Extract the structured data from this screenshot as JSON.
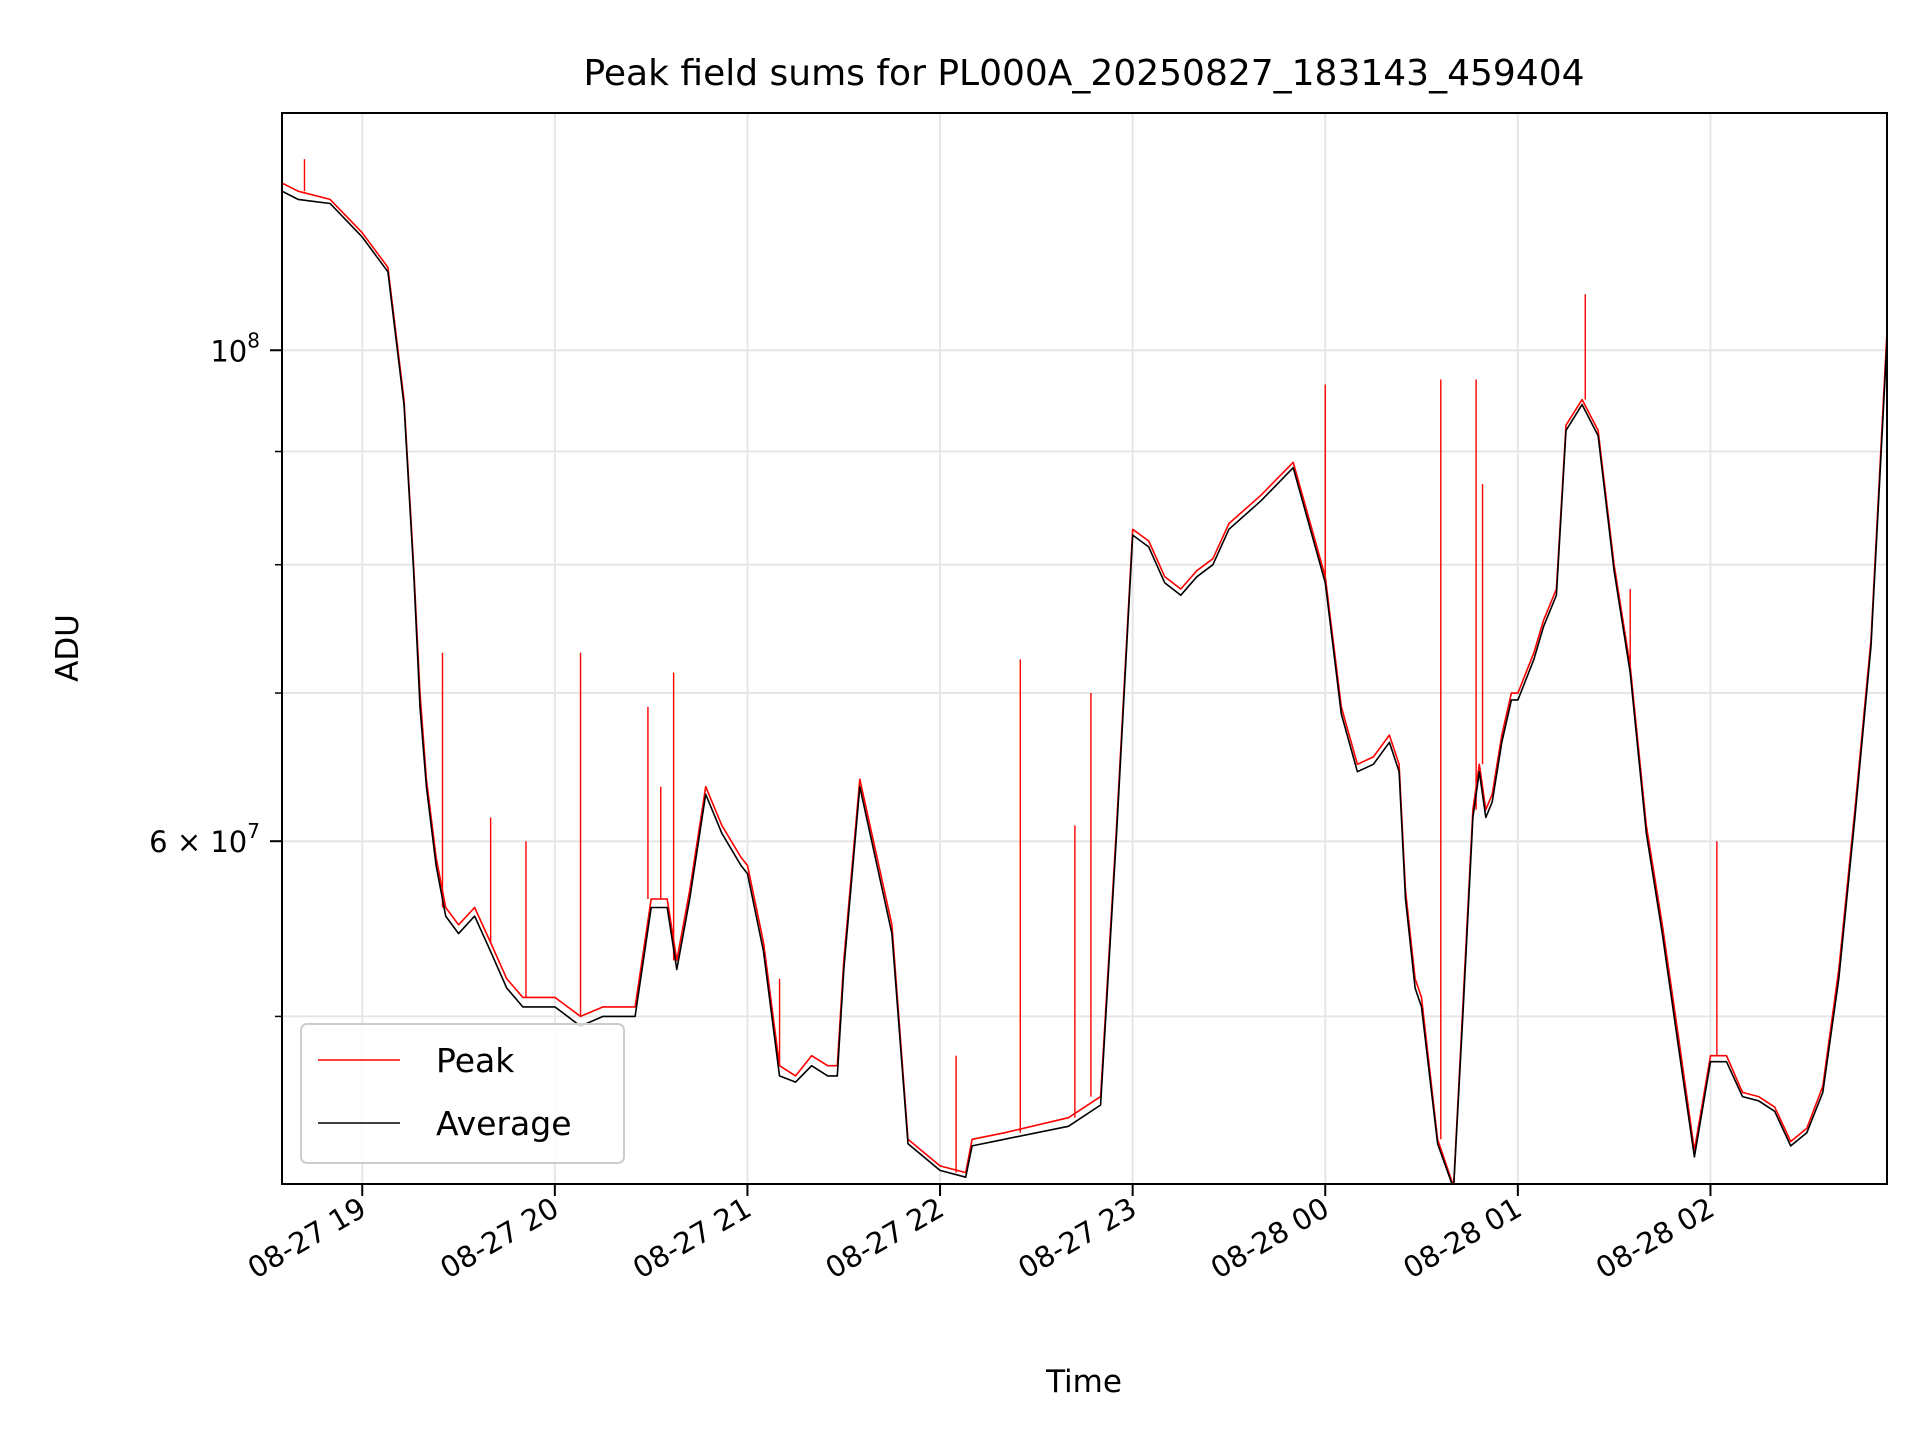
{
  "chart_data": {
    "type": "line",
    "title": "Peak field sums for PL000A_20250827_183143_459404",
    "xlabel": "Time",
    "ylabel": "ADU",
    "yscale": "log",
    "grid": true,
    "legend_position": "lower-left",
    "xlim": [
      "2025-08-27 18:35",
      "2025-08-28 02:55"
    ],
    "ylim": [
      42000000,
      128000000
    ],
    "x_ticks": [
      "08-27 19",
      "08-27 20",
      "08-27 21",
      "08-27 22",
      "08-27 23",
      "08-28 00",
      "08-28 01",
      "08-28 02"
    ],
    "x_tick_times": [
      "2025-08-27 19:00",
      "2025-08-27 20:00",
      "2025-08-27 21:00",
      "2025-08-27 22:00",
      "2025-08-27 23:00",
      "2025-08-28 00:00",
      "2025-08-28 01:00",
      "2025-08-28 02:00"
    ],
    "y_major_ticks": [
      {
        "value": 100000000,
        "base": "10",
        "exp": "8"
      },
      {
        "value": 60000000,
        "base": "6 × 10",
        "exp": "7"
      }
    ],
    "y_minor_ticks": [
      50000000,
      70000000,
      80000000,
      90000000
    ],
    "series": [
      {
        "name": "Peak",
        "color": "#ff0000",
        "x": [
          "2025-08-27 18:35",
          "2025-08-27 18:40",
          "2025-08-27 18:50",
          "2025-08-27 19:00",
          "2025-08-27 19:08",
          "2025-08-27 19:13",
          "2025-08-27 19:16",
          "2025-08-27 19:18",
          "2025-08-27 19:20",
          "2025-08-27 19:23",
          "2025-08-27 19:26",
          "2025-08-27 19:30",
          "2025-08-27 19:35",
          "2025-08-27 19:40",
          "2025-08-27 19:45",
          "2025-08-27 19:50",
          "2025-08-27 19:55",
          "2025-08-27 20:00",
          "2025-08-27 20:08",
          "2025-08-27 20:15",
          "2025-08-27 20:25",
          "2025-08-27 20:30",
          "2025-08-27 20:35",
          "2025-08-27 20:38",
          "2025-08-27 20:42",
          "2025-08-27 20:47",
          "2025-08-27 20:52",
          "2025-08-27 20:58",
          "2025-08-27 21:00",
          "2025-08-27 21:05",
          "2025-08-27 21:10",
          "2025-08-27 21:15",
          "2025-08-27 21:20",
          "2025-08-27 21:25",
          "2025-08-27 21:28",
          "2025-08-27 21:30",
          "2025-08-27 21:35",
          "2025-08-27 21:45",
          "2025-08-27 21:50",
          "2025-08-27 22:00",
          "2025-08-27 22:08",
          "2025-08-27 22:10",
          "2025-08-27 22:20",
          "2025-08-27 22:40",
          "2025-08-27 22:50",
          "2025-08-27 22:55",
          "2025-08-27 23:00",
          "2025-08-27 23:05",
          "2025-08-27 23:10",
          "2025-08-27 23:15",
          "2025-08-27 23:20",
          "2025-08-27 23:25",
          "2025-08-27 23:30",
          "2025-08-27 23:40",
          "2025-08-27 23:50",
          "2025-08-28 00:00",
          "2025-08-28 00:05",
          "2025-08-28 00:10",
          "2025-08-28 00:15",
          "2025-08-28 00:20",
          "2025-08-28 00:23",
          "2025-08-28 00:25",
          "2025-08-28 00:28",
          "2025-08-28 00:30",
          "2025-08-28 00:35",
          "2025-08-28 00:40",
          "2025-08-28 00:43",
          "2025-08-28 00:46",
          "2025-08-28 00:48",
          "2025-08-28 00:50",
          "2025-08-28 00:52",
          "2025-08-28 00:55",
          "2025-08-28 00:58",
          "2025-08-28 01:00",
          "2025-08-28 01:05",
          "2025-08-28 01:08",
          "2025-08-28 01:12",
          "2025-08-28 01:15",
          "2025-08-28 01:20",
          "2025-08-28 01:25",
          "2025-08-28 01:30",
          "2025-08-28 01:35",
          "2025-08-28 01:40",
          "2025-08-28 01:45",
          "2025-08-28 01:50",
          "2025-08-28 01:55",
          "2025-08-28 02:00",
          "2025-08-28 02:05",
          "2025-08-28 02:10",
          "2025-08-28 02:15",
          "2025-08-28 02:20",
          "2025-08-28 02:25",
          "2025-08-28 02:30",
          "2025-08-28 02:35",
          "2025-08-28 02:40",
          "2025-08-28 02:45",
          "2025-08-28 02:50",
          "2025-08-28 02:55"
        ],
        "y": [
          119000000,
          118000000,
          117000000,
          113000000,
          109000000,
          95000000,
          80000000,
          70000000,
          64000000,
          59000000,
          56000000,
          55000000,
          56000000,
          54000000,
          52000000,
          51000000,
          51000000,
          51000000,
          50000000,
          50500000,
          50500000,
          56500000,
          56500000,
          53000000,
          57000000,
          63500000,
          61000000,
          59000000,
          58500000,
          54000000,
          47500000,
          47000000,
          48000000,
          47500000,
          47500000,
          53000000,
          64000000,
          55000000,
          44000000,
          42800000,
          42500000,
          44000000,
          44300000,
          45000000,
          46000000,
          61000000,
          83000000,
          82000000,
          79000000,
          78000000,
          79500000,
          80500000,
          83500000,
          86000000,
          89000000,
          79000000,
          69000000,
          65000000,
          65500000,
          67000000,
          65000000,
          57000000,
          52000000,
          51000000,
          44000000,
          41900000,
          51000000,
          62000000,
          65000000,
          62000000,
          63000000,
          67000000,
          70000000,
          70000000,
          73000000,
          75500000,
          78000000,
          92500000,
          95000000,
          92000000,
          80000000,
          72000000,
          61000000,
          55000000,
          49000000,
          43500000,
          48000000,
          48000000,
          46200000,
          46000000,
          45500000,
          43900000,
          44500000,
          46500000,
          52500000,
          62000000,
          74000000,
          102000000
        ],
        "spikes": [
          {
            "x": "2025-08-27 18:42",
            "y": 122000000
          },
          {
            "x": "2025-08-27 19:25",
            "y": 73000000
          },
          {
            "x": "2025-08-27 19:40",
            "y": 61500000
          },
          {
            "x": "2025-08-27 19:51",
            "y": 60000000
          },
          {
            "x": "2025-08-27 20:08",
            "y": 73000000
          },
          {
            "x": "2025-08-27 20:29",
            "y": 69000000
          },
          {
            "x": "2025-08-27 20:33",
            "y": 63500000
          },
          {
            "x": "2025-08-27 20:37",
            "y": 71500000
          },
          {
            "x": "2025-08-27 21:10",
            "y": 52000000
          },
          {
            "x": "2025-08-27 22:05",
            "y": 48000000
          },
          {
            "x": "2025-08-27 22:25",
            "y": 72500000
          },
          {
            "x": "2025-08-27 22:42",
            "y": 61000000
          },
          {
            "x": "2025-08-27 22:47",
            "y": 70000000
          },
          {
            "x": "2025-08-28 00:00",
            "y": 96500000
          },
          {
            "x": "2025-08-28 00:36",
            "y": 97000000
          },
          {
            "x": "2025-08-28 00:47",
            "y": 97000000
          },
          {
            "x": "2025-08-28 00:49",
            "y": 87000000
          },
          {
            "x": "2025-08-28 01:21",
            "y": 106000000
          },
          {
            "x": "2025-08-28 01:35",
            "y": 78000000
          },
          {
            "x": "2025-08-28 02:02",
            "y": 60000000
          }
        ]
      },
      {
        "name": "Average",
        "color": "#000000",
        "x": [
          "2025-08-27 18:35",
          "2025-08-27 18:40",
          "2025-08-27 18:50",
          "2025-08-27 19:00",
          "2025-08-27 19:08",
          "2025-08-27 19:13",
          "2025-08-27 19:16",
          "2025-08-27 19:18",
          "2025-08-27 19:20",
          "2025-08-27 19:23",
          "2025-08-27 19:26",
          "2025-08-27 19:30",
          "2025-08-27 19:35",
          "2025-08-27 19:40",
          "2025-08-27 19:45",
          "2025-08-27 19:50",
          "2025-08-27 19:55",
          "2025-08-27 20:00",
          "2025-08-27 20:08",
          "2025-08-27 20:15",
          "2025-08-27 20:25",
          "2025-08-27 20:30",
          "2025-08-27 20:35",
          "2025-08-27 20:38",
          "2025-08-27 20:42",
          "2025-08-27 20:47",
          "2025-08-27 20:52",
          "2025-08-27 20:58",
          "2025-08-27 21:00",
          "2025-08-27 21:05",
          "2025-08-27 21:10",
          "2025-08-27 21:15",
          "2025-08-27 21:20",
          "2025-08-27 21:25",
          "2025-08-27 21:28",
          "2025-08-27 21:30",
          "2025-08-27 21:35",
          "2025-08-27 21:45",
          "2025-08-27 21:50",
          "2025-08-27 22:00",
          "2025-08-27 22:08",
          "2025-08-27 22:10",
          "2025-08-27 22:20",
          "2025-08-27 22:40",
          "2025-08-27 22:50",
          "2025-08-27 22:55",
          "2025-08-27 23:00",
          "2025-08-27 23:05",
          "2025-08-27 23:10",
          "2025-08-27 23:15",
          "2025-08-27 23:20",
          "2025-08-27 23:25",
          "2025-08-27 23:30",
          "2025-08-27 23:40",
          "2025-08-27 23:50",
          "2025-08-28 00:00",
          "2025-08-28 00:05",
          "2025-08-28 00:10",
          "2025-08-28 00:15",
          "2025-08-28 00:20",
          "2025-08-28 00:23",
          "2025-08-28 00:25",
          "2025-08-28 00:28",
          "2025-08-28 00:30",
          "2025-08-28 00:35",
          "2025-08-28 00:40",
          "2025-08-28 00:43",
          "2025-08-28 00:46",
          "2025-08-28 00:48",
          "2025-08-28 00:50",
          "2025-08-28 00:52",
          "2025-08-28 00:55",
          "2025-08-28 00:58",
          "2025-08-28 01:00",
          "2025-08-28 01:05",
          "2025-08-28 01:08",
          "2025-08-28 01:12",
          "2025-08-28 01:15",
          "2025-08-28 01:20",
          "2025-08-28 01:25",
          "2025-08-28 01:30",
          "2025-08-28 01:35",
          "2025-08-28 01:40",
          "2025-08-28 01:45",
          "2025-08-28 01:50",
          "2025-08-28 01:55",
          "2025-08-28 02:00",
          "2025-08-28 02:05",
          "2025-08-28 02:10",
          "2025-08-28 02:15",
          "2025-08-28 02:20",
          "2025-08-28 02:25",
          "2025-08-28 02:30",
          "2025-08-28 02:35",
          "2025-08-28 02:40",
          "2025-08-28 02:45",
          "2025-08-28 02:50",
          "2025-08-28 02:55"
        ],
        "y": [
          118000000,
          117000000,
          116500000,
          112500000,
          108500000,
          94500000,
          79500000,
          69000000,
          63500000,
          58500000,
          55500000,
          54500000,
          55500000,
          53500000,
          51500000,
          50500000,
          50500000,
          50500000,
          49500000,
          50000000,
          50000000,
          56000000,
          56000000,
          52500000,
          56500000,
          63000000,
          60500000,
          58500000,
          58000000,
          53500000,
          47000000,
          46700000,
          47500000,
          47000000,
          47000000,
          52500000,
          63500000,
          54500000,
          43800000,
          42600000,
          42300000,
          43700000,
          44000000,
          44600000,
          45600000,
          60500000,
          82500000,
          81500000,
          78500000,
          77500000,
          79000000,
          80000000,
          83000000,
          85500000,
          88500000,
          78500000,
          68500000,
          64500000,
          65000000,
          66500000,
          64500000,
          56500000,
          51500000,
          50500000,
          43800000,
          41800000,
          50500000,
          61500000,
          64500000,
          61500000,
          62500000,
          66500000,
          69500000,
          69500000,
          72500000,
          75000000,
          77500000,
          92000000,
          94500000,
          91500000,
          79500000,
          71500000,
          60500000,
          54500000,
          48500000,
          43200000,
          47700000,
          47700000,
          46000000,
          45800000,
          45300000,
          43700000,
          44300000,
          46200000,
          52000000,
          61500000,
          73500000,
          101000000
        ]
      }
    ]
  }
}
